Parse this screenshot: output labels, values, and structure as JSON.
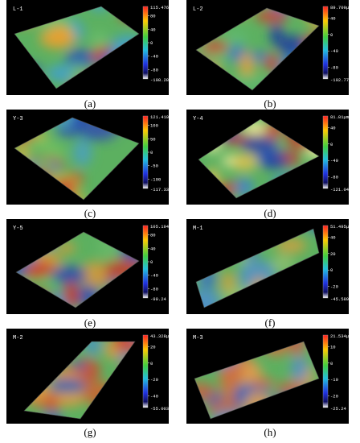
{
  "panels": [
    {
      "label": "L-1",
      "max": "115.476μm",
      "ticks": [
        80,
        40,
        0,
        -40,
        -80
      ],
      "min": "-108.282",
      "caption": "(a)"
    },
    {
      "label": "L-2",
      "max": "89.709μm",
      "ticks": [
        40,
        0,
        -40,
        -80
      ],
      "min": "-102.773",
      "caption": "(b)"
    },
    {
      "label": "Y-3",
      "max": "121.419μm",
      "ticks": [
        100,
        50,
        0,
        -50,
        -100
      ],
      "min": "-117.33",
      "caption": "(c)"
    },
    {
      "label": "Y-4",
      "max": "81.81μm",
      "ticks": [
        40,
        0,
        -40,
        -80
      ],
      "min": "-121.043",
      "caption": "(d)"
    },
    {
      "label": "Y-5",
      "max": "105.194μm",
      "ticks": [
        80,
        40,
        0,
        -40,
        -80
      ],
      "min": "-99.24",
      "caption": "(e)"
    },
    {
      "label": "M-1",
      "max": "51.495μm",
      "ticks": [
        40,
        20,
        0,
        -20
      ],
      "min": "-45.589",
      "caption": "(f)"
    },
    {
      "label": "M-2",
      "max": "43.328μm",
      "ticks": [
        20,
        0,
        -20,
        -40
      ],
      "min": "-55.003",
      "caption": "(g)"
    },
    {
      "label": "M-3",
      "max": "21.534μm",
      "ticks": [
        10,
        0,
        -10,
        -20
      ],
      "min": "-25.24",
      "caption": "(h)"
    }
  ]
}
